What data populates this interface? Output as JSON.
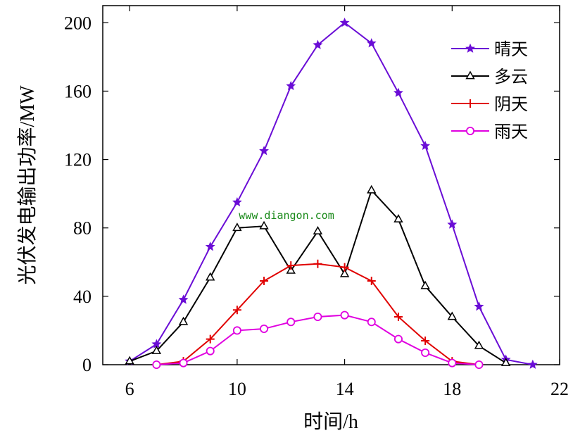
{
  "chart_data": {
    "type": "line",
    "title": "",
    "xlabel": "时间/h",
    "ylabel": "光伏发电输出功率/MW",
    "xlim": [
      5,
      22
    ],
    "ylim": [
      0,
      210
    ],
    "xticks": [
      6,
      10,
      14,
      18,
      22
    ],
    "yticks": [
      0,
      40,
      80,
      120,
      160,
      200
    ],
    "legend_position": "top-right",
    "watermark": "www.diangon.com",
    "series": [
      {
        "name": "晴天",
        "color": "#6a0dd6",
        "marker": "star",
        "x": [
          6,
          7,
          8,
          9,
          10,
          11,
          12,
          13,
          14,
          15,
          16,
          17,
          18,
          19,
          20,
          21
        ],
        "values": [
          2,
          12,
          38,
          69,
          95,
          125,
          163,
          187,
          200,
          188,
          159,
          128,
          82,
          34,
          3,
          0
        ]
      },
      {
        "name": "多云",
        "color": "#000000",
        "marker": "triangle",
        "x": [
          6,
          7,
          8,
          9,
          10,
          11,
          12,
          13,
          14,
          15,
          16,
          17,
          18,
          19,
          20
        ],
        "values": [
          2,
          8,
          25,
          51,
          80,
          81,
          55,
          78,
          53,
          102,
          85,
          46,
          28,
          11,
          1
        ]
      },
      {
        "name": "阴天",
        "color": "#e00000",
        "marker": "plus",
        "x": [
          7,
          8,
          9,
          10,
          11,
          12,
          13,
          14,
          15,
          16,
          17,
          18,
          19
        ],
        "values": [
          0,
          2,
          15,
          32,
          49,
          58,
          59,
          57,
          49,
          28,
          14,
          2,
          0
        ]
      },
      {
        "name": "雨天",
        "color": "#e000e0",
        "marker": "circle",
        "x": [
          7,
          8,
          9,
          10,
          11,
          12,
          13,
          14,
          15,
          16,
          17,
          18,
          19
        ],
        "values": [
          0,
          1,
          8,
          20,
          21,
          25,
          28,
          29,
          25,
          15,
          7,
          1,
          0
        ]
      }
    ]
  }
}
